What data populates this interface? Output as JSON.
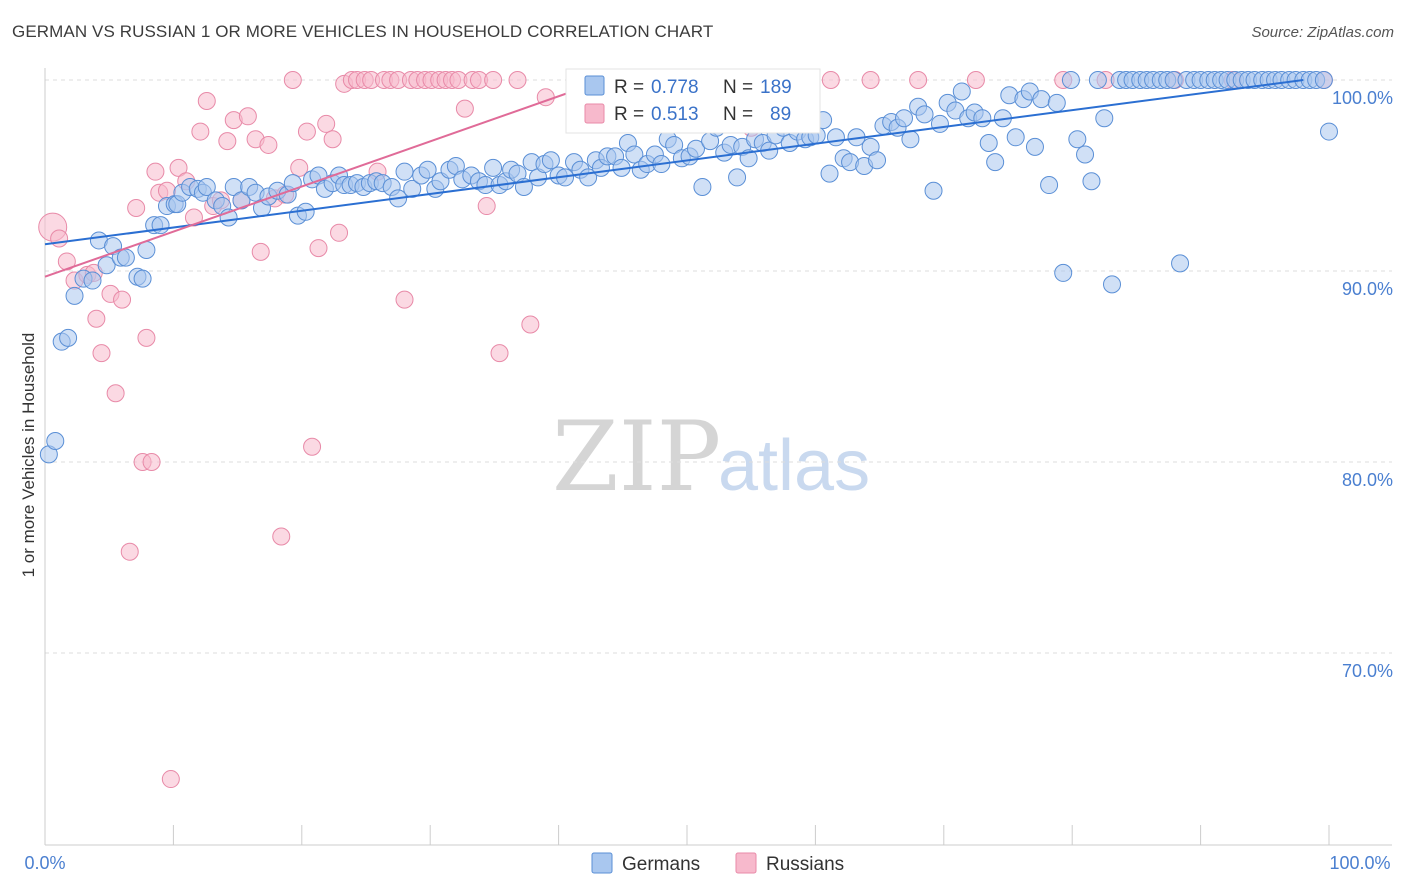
{
  "header": {
    "title": "GERMAN VS RUSSIAN 1 OR MORE VEHICLES IN HOUSEHOLD CORRELATION CHART",
    "source": "Source: ZipAtlas.com"
  },
  "stats": {
    "r_label": "R =",
    "n_label": "N =",
    "germans": {
      "r": "0.778",
      "n": "189"
    },
    "russians": {
      "r": "0.513",
      "n": "89"
    }
  },
  "legend": {
    "germans": "Germans",
    "russians": "Russians"
  },
  "watermark": {
    "zip": "ZIP",
    "atlas": "atlas"
  },
  "colors": {
    "germans_fill": "#a9c7ef",
    "germans_stroke": "#5a8fd6",
    "germans_line": "#2b6fd2",
    "russians_fill": "#f7b9cc",
    "russians_stroke": "#e88aa8",
    "russians_line": "#e06b98",
    "grid": "#dddddd",
    "tick_label": "#4a7fd0"
  },
  "chart_data": {
    "type": "scatter",
    "title": "GERMAN VS RUSSIAN 1 OR MORE VEHICLES IN HOUSEHOLD CORRELATION CHART",
    "xlabel": "",
    "ylabel": "1 or more Vehicles in Household",
    "xlim": [
      0,
      100
    ],
    "ylim": [
      60,
      101.5
    ],
    "x_tick_labels": [
      "0.0%",
      "100.0%"
    ],
    "y_ticks": [
      70,
      80,
      90,
      100
    ],
    "y_tick_labels": [
      "70.0%",
      "80.0%",
      "90.0%",
      "100.0%"
    ],
    "grid": true,
    "legend_position": "bottom-center",
    "series": [
      {
        "name": "Germans",
        "r": 0.778,
        "n": 189,
        "trend": {
          "x": [
            0,
            98
          ],
          "y": [
            91.4,
            100.0
          ]
        },
        "points": [
          [
            0.3,
            80.4
          ],
          [
            0.8,
            81.1
          ],
          [
            1.3,
            86.3
          ],
          [
            1.8,
            86.5
          ],
          [
            2.3,
            88.7
          ],
          [
            3.0,
            89.6
          ],
          [
            3.7,
            89.5
          ],
          [
            4.2,
            91.6
          ],
          [
            4.8,
            90.3
          ],
          [
            5.3,
            91.3
          ],
          [
            5.9,
            90.7
          ],
          [
            6.3,
            90.7
          ],
          [
            7.2,
            89.7
          ],
          [
            7.6,
            89.6
          ],
          [
            7.9,
            91.1
          ],
          [
            8.5,
            92.4
          ],
          [
            9.0,
            92.4
          ],
          [
            9.5,
            93.4
          ],
          [
            10.1,
            93.5
          ],
          [
            10.3,
            93.5
          ],
          [
            10.7,
            94.1
          ],
          [
            11.3,
            94.4
          ],
          [
            11.9,
            94.3
          ],
          [
            12.3,
            94.1
          ],
          [
            12.6,
            94.4
          ],
          [
            13.3,
            93.7
          ],
          [
            13.8,
            93.4
          ],
          [
            14.3,
            92.8
          ],
          [
            14.7,
            94.4
          ],
          [
            15.3,
            93.7
          ],
          [
            15.9,
            94.4
          ],
          [
            16.4,
            94.1
          ],
          [
            16.9,
            93.3
          ],
          [
            17.4,
            93.9
          ],
          [
            18.1,
            94.2
          ],
          [
            18.9,
            94.0
          ],
          [
            19.3,
            94.6
          ],
          [
            19.7,
            92.9
          ],
          [
            20.3,
            93.1
          ],
          [
            20.8,
            94.8
          ],
          [
            21.3,
            95.0
          ],
          [
            21.8,
            94.3
          ],
          [
            22.4,
            94.6
          ],
          [
            22.9,
            95.0
          ],
          [
            23.3,
            94.5
          ],
          [
            23.8,
            94.5
          ],
          [
            24.3,
            94.6
          ],
          [
            24.8,
            94.4
          ],
          [
            25.3,
            94.6
          ],
          [
            25.8,
            94.7
          ],
          [
            26.3,
            94.6
          ],
          [
            27.0,
            94.4
          ],
          [
            27.5,
            93.8
          ],
          [
            28.0,
            95.2
          ],
          [
            28.6,
            94.3
          ],
          [
            29.3,
            95.0
          ],
          [
            29.8,
            95.3
          ],
          [
            30.4,
            94.3
          ],
          [
            30.8,
            94.7
          ],
          [
            31.5,
            95.3
          ],
          [
            32.0,
            95.5
          ],
          [
            32.5,
            94.8
          ],
          [
            33.2,
            95.0
          ],
          [
            33.8,
            94.7
          ],
          [
            34.3,
            94.5
          ],
          [
            34.9,
            95.4
          ],
          [
            35.4,
            94.5
          ],
          [
            35.9,
            94.7
          ],
          [
            36.3,
            95.3
          ],
          [
            36.8,
            95.1
          ],
          [
            37.3,
            94.4
          ],
          [
            37.9,
            95.7
          ],
          [
            38.4,
            94.9
          ],
          [
            38.9,
            95.6
          ],
          [
            39.4,
            95.8
          ],
          [
            40.0,
            95.0
          ],
          [
            40.5,
            94.9
          ],
          [
            41.2,
            95.7
          ],
          [
            41.7,
            95.3
          ],
          [
            42.3,
            94.9
          ],
          [
            42.9,
            95.8
          ],
          [
            43.3,
            95.4
          ],
          [
            43.8,
            96.0
          ],
          [
            44.4,
            96.0
          ],
          [
            44.9,
            95.4
          ],
          [
            45.4,
            96.7
          ],
          [
            45.9,
            96.1
          ],
          [
            46.4,
            95.3
          ],
          [
            46.9,
            95.6
          ],
          [
            47.5,
            96.1
          ],
          [
            48.0,
            95.6
          ],
          [
            48.5,
            96.9
          ],
          [
            49.0,
            96.6
          ],
          [
            49.6,
            95.9
          ],
          [
            50.2,
            96.0
          ],
          [
            50.7,
            96.4
          ],
          [
            51.2,
            94.4
          ],
          [
            51.8,
            96.8
          ],
          [
            52.3,
            97.5
          ],
          [
            52.9,
            96.2
          ],
          [
            53.4,
            96.6
          ],
          [
            53.9,
            94.9
          ],
          [
            54.3,
            96.5
          ],
          [
            54.8,
            95.9
          ],
          [
            55.3,
            96.9
          ],
          [
            55.9,
            96.7
          ],
          [
            56.4,
            96.3
          ],
          [
            56.9,
            97.1
          ],
          [
            57.5,
            97.5
          ],
          [
            58.0,
            96.7
          ],
          [
            58.6,
            97.3
          ],
          [
            59.2,
            96.9
          ],
          [
            59.6,
            97.0
          ],
          [
            60.1,
            97.1
          ],
          [
            60.6,
            97.9
          ],
          [
            61.1,
            95.1
          ],
          [
            61.6,
            97.0
          ],
          [
            62.2,
            95.9
          ],
          [
            62.7,
            95.7
          ],
          [
            63.2,
            97.0
          ],
          [
            63.8,
            95.5
          ],
          [
            64.3,
            96.5
          ],
          [
            64.8,
            95.8
          ],
          [
            65.3,
            97.6
          ],
          [
            65.9,
            97.8
          ],
          [
            66.4,
            97.5
          ],
          [
            66.9,
            98.0
          ],
          [
            67.4,
            96.9
          ],
          [
            68.0,
            98.6
          ],
          [
            68.5,
            98.2
          ],
          [
            69.2,
            94.2
          ],
          [
            69.7,
            97.7
          ],
          [
            70.3,
            98.8
          ],
          [
            70.9,
            98.4
          ],
          [
            71.4,
            99.4
          ],
          [
            71.9,
            98.0
          ],
          [
            72.4,
            98.3
          ],
          [
            73.0,
            98.0
          ],
          [
            73.5,
            96.7
          ],
          [
            74.0,
            95.7
          ],
          [
            74.6,
            98.0
          ],
          [
            75.1,
            99.2
          ],
          [
            75.6,
            97.0
          ],
          [
            76.2,
            99.0
          ],
          [
            76.7,
            99.4
          ],
          [
            77.1,
            96.5
          ],
          [
            77.6,
            99.0
          ],
          [
            78.2,
            94.5
          ],
          [
            78.8,
            98.8
          ],
          [
            79.3,
            89.9
          ],
          [
            79.9,
            100.0
          ],
          [
            80.4,
            96.9
          ],
          [
            81.0,
            96.1
          ],
          [
            81.5,
            94.7
          ],
          [
            82.0,
            100.0
          ],
          [
            82.5,
            98.0
          ],
          [
            83.1,
            89.3
          ],
          [
            83.7,
            100.0
          ],
          [
            84.2,
            100.0
          ],
          [
            84.7,
            100.0
          ],
          [
            85.3,
            100.0
          ],
          [
            85.8,
            100.0
          ],
          [
            86.3,
            100.0
          ],
          [
            86.9,
            100.0
          ],
          [
            87.4,
            100.0
          ],
          [
            87.9,
            100.0
          ],
          [
            88.4,
            90.4
          ],
          [
            88.9,
            100.0
          ],
          [
            89.5,
            100.0
          ],
          [
            90.0,
            100.0
          ],
          [
            90.6,
            100.0
          ],
          [
            91.1,
            100.0
          ],
          [
            91.6,
            100.0
          ],
          [
            92.1,
            100.0
          ],
          [
            92.7,
            100.0
          ],
          [
            93.2,
            100.0
          ],
          [
            93.7,
            100.0
          ],
          [
            94.2,
            100.0
          ],
          [
            94.8,
            100.0
          ],
          [
            95.3,
            100.0
          ],
          [
            95.8,
            100.0
          ],
          [
            96.3,
            100.0
          ],
          [
            96.9,
            100.0
          ],
          [
            97.4,
            100.0
          ],
          [
            98.0,
            100.0
          ],
          [
            98.5,
            100.0
          ],
          [
            99.0,
            100.0
          ],
          [
            99.6,
            100.0
          ],
          [
            100.0,
            97.3
          ]
        ]
      },
      {
        "name": "Russians",
        "r": 0.513,
        "n": 89,
        "trend": {
          "x": [
            0,
            43.6
          ],
          "y": [
            89.7,
            100.0
          ]
        },
        "points": [
          [
            0.6,
            92.3
          ],
          [
            1.1,
            91.7
          ],
          [
            1.7,
            90.5
          ],
          [
            2.3,
            89.5
          ],
          [
            3.3,
            89.8
          ],
          [
            3.8,
            89.9
          ],
          [
            4.0,
            87.5
          ],
          [
            4.4,
            85.7
          ],
          [
            5.1,
            88.8
          ],
          [
            5.5,
            83.6
          ],
          [
            6.0,
            88.5
          ],
          [
            6.6,
            75.3
          ],
          [
            7.1,
            93.3
          ],
          [
            7.6,
            80.0
          ],
          [
            7.9,
            86.5
          ],
          [
            8.3,
            80.0
          ],
          [
            8.6,
            95.2
          ],
          [
            8.9,
            94.1
          ],
          [
            9.5,
            94.2
          ],
          [
            9.8,
            63.4
          ],
          [
            10.4,
            95.4
          ],
          [
            11.0,
            94.7
          ],
          [
            11.6,
            92.8
          ],
          [
            12.1,
            97.3
          ],
          [
            12.6,
            98.9
          ],
          [
            13.1,
            93.4
          ],
          [
            13.7,
            93.7
          ],
          [
            14.2,
            96.8
          ],
          [
            14.7,
            97.9
          ],
          [
            15.3,
            93.7
          ],
          [
            15.8,
            98.1
          ],
          [
            16.4,
            96.9
          ],
          [
            16.8,
            91.0
          ],
          [
            17.4,
            96.6
          ],
          [
            17.9,
            93.8
          ],
          [
            18.4,
            76.1
          ],
          [
            18.7,
            94.0
          ],
          [
            19.3,
            100.0
          ],
          [
            19.8,
            95.4
          ],
          [
            20.4,
            97.3
          ],
          [
            20.8,
            80.8
          ],
          [
            21.3,
            91.2
          ],
          [
            21.9,
            97.7
          ],
          [
            22.4,
            96.9
          ],
          [
            22.9,
            92.0
          ],
          [
            23.3,
            99.8
          ],
          [
            23.9,
            100.0
          ],
          [
            24.3,
            100.0
          ],
          [
            24.9,
            100.0
          ],
          [
            25.4,
            100.0
          ],
          [
            25.9,
            95.2
          ],
          [
            26.4,
            100.0
          ],
          [
            26.9,
            100.0
          ],
          [
            27.5,
            100.0
          ],
          [
            28.0,
            88.5
          ],
          [
            28.5,
            100.0
          ],
          [
            29.0,
            100.0
          ],
          [
            29.6,
            100.0
          ],
          [
            30.1,
            100.0
          ],
          [
            30.7,
            100.0
          ],
          [
            31.2,
            100.0
          ],
          [
            31.7,
            100.0
          ],
          [
            32.2,
            100.0
          ],
          [
            32.7,
            98.5
          ],
          [
            33.3,
            100.0
          ],
          [
            33.8,
            100.0
          ],
          [
            34.4,
            93.4
          ],
          [
            34.9,
            100.0
          ],
          [
            35.4,
            85.7
          ],
          [
            36.8,
            100.0
          ],
          [
            37.8,
            87.2
          ],
          [
            39.0,
            99.1
          ],
          [
            41.5,
            100.0
          ],
          [
            45.3,
            100.0
          ],
          [
            48.5,
            100.0
          ],
          [
            51.0,
            100.0
          ],
          [
            53.6,
            100.0
          ],
          [
            55.0,
            97.5
          ],
          [
            56.3,
            100.0
          ],
          [
            57.9,
            100.0
          ],
          [
            61.2,
            100.0
          ],
          [
            64.3,
            100.0
          ],
          [
            68.0,
            100.0
          ],
          [
            72.5,
            100.0
          ],
          [
            79.3,
            100.0
          ],
          [
            82.6,
            100.0
          ],
          [
            88.0,
            100.0
          ],
          [
            92.5,
            100.0
          ],
          [
            99.6,
            100.0
          ]
        ]
      }
    ]
  }
}
